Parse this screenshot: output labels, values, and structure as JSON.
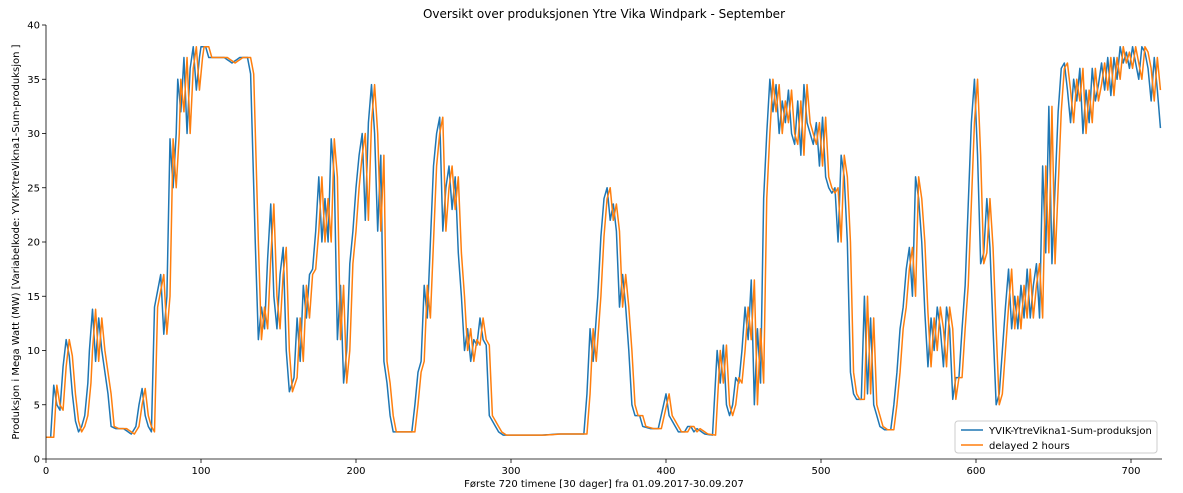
{
  "chart_data": {
    "type": "line",
    "title": "Oversikt over produksjonen Ytre Vika Windpark - September",
    "xlabel": "Første 720 timene [30 dager] fra 01.09.2017-30.09.207",
    "ylabel": "Produksjon i Mega Watt (MW) [Variabelkode: YVIK-YtreVikna1-Sum-produksjon ]",
    "xlim": [
      0,
      720
    ],
    "ylim": [
      0,
      40
    ],
    "xticks": [
      0,
      100,
      200,
      300,
      400,
      500,
      600,
      700
    ],
    "yticks": [
      0,
      5,
      10,
      15,
      20,
      25,
      30,
      35,
      40
    ],
    "grid": false,
    "legend_position": "lower-right",
    "delay_hours": 2,
    "series": [
      {
        "name": "YVIK-YtreVikna1-Sum-produksjon",
        "color": "#1f77b4",
        "keypoints": [
          [
            0,
            2
          ],
          [
            3,
            2
          ],
          [
            5,
            6.8
          ],
          [
            7,
            5
          ],
          [
            9,
            4.5
          ],
          [
            11,
            8.5
          ],
          [
            13,
            11
          ],
          [
            15,
            9.5
          ],
          [
            17,
            6
          ],
          [
            19,
            3.5
          ],
          [
            21,
            2.5
          ],
          [
            23,
            3
          ],
          [
            25,
            4
          ],
          [
            27,
            7
          ],
          [
            28,
            10
          ],
          [
            30,
            13.8
          ],
          [
            32,
            9
          ],
          [
            34,
            13
          ],
          [
            36,
            10
          ],
          [
            38,
            8
          ],
          [
            40,
            6
          ],
          [
            42,
            3
          ],
          [
            45,
            2.8
          ],
          [
            50,
            2.8
          ],
          [
            53,
            2.5
          ],
          [
            55,
            2.3
          ],
          [
            58,
            3
          ],
          [
            60,
            5
          ],
          [
            62,
            6.5
          ],
          [
            64,
            4
          ],
          [
            66,
            3
          ],
          [
            68,
            2.5
          ],
          [
            70,
            14
          ],
          [
            72,
            15.5
          ],
          [
            74,
            17
          ],
          [
            76,
            11.5
          ],
          [
            78,
            15
          ],
          [
            80,
            29.5
          ],
          [
            82,
            25
          ],
          [
            84,
            30
          ],
          [
            85,
            35
          ],
          [
            87,
            32
          ],
          [
            89,
            37
          ],
          [
            91,
            30
          ],
          [
            93,
            36
          ],
          [
            95,
            38
          ],
          [
            97,
            34
          ],
          [
            99,
            37
          ],
          [
            100,
            38
          ],
          [
            103,
            38
          ],
          [
            105,
            37
          ],
          [
            110,
            37
          ],
          [
            115,
            37
          ],
          [
            120,
            36.5
          ],
          [
            125,
            37
          ],
          [
            130,
            37
          ],
          [
            132,
            35.5
          ],
          [
            135,
            20
          ],
          [
            137,
            11
          ],
          [
            139,
            14
          ],
          [
            141,
            12
          ],
          [
            143,
            18.5
          ],
          [
            145,
            23.5
          ],
          [
            147,
            15
          ],
          [
            149,
            12
          ],
          [
            151,
            17
          ],
          [
            153,
            19.5
          ],
          [
            155,
            10
          ],
          [
            157,
            6.2
          ],
          [
            160,
            7.5
          ],
          [
            162,
            13
          ],
          [
            164,
            9
          ],
          [
            166,
            16
          ],
          [
            168,
            13
          ],
          [
            170,
            17
          ],
          [
            172,
            17.5
          ],
          [
            174,
            21
          ],
          [
            176,
            26
          ],
          [
            178,
            20
          ],
          [
            180,
            24
          ],
          [
            182,
            20
          ],
          [
            184,
            29.5
          ],
          [
            186,
            26
          ],
          [
            188,
            11
          ],
          [
            190,
            16
          ],
          [
            192,
            7
          ],
          [
            194,
            10
          ],
          [
            196,
            18
          ],
          [
            198,
            21
          ],
          [
            200,
            25
          ],
          [
            202,
            28
          ],
          [
            204,
            30
          ],
          [
            206,
            22
          ],
          [
            208,
            31
          ],
          [
            210,
            34.5
          ],
          [
            212,
            30
          ],
          [
            214,
            21
          ],
          [
            216,
            28
          ],
          [
            218,
            9
          ],
          [
            220,
            7
          ],
          [
            222,
            4
          ],
          [
            224,
            2.5
          ],
          [
            228,
            2.5
          ],
          [
            232,
            2.5
          ],
          [
            236,
            2.5
          ],
          [
            238,
            5
          ],
          [
            240,
            8
          ],
          [
            242,
            9
          ],
          [
            244,
            16
          ],
          [
            246,
            13
          ],
          [
            248,
            20
          ],
          [
            250,
            27
          ],
          [
            252,
            30
          ],
          [
            254,
            31.5
          ],
          [
            256,
            21
          ],
          [
            258,
            25
          ],
          [
            260,
            27
          ],
          [
            262,
            23
          ],
          [
            264,
            26
          ],
          [
            266,
            19
          ],
          [
            268,
            15
          ],
          [
            270,
            10
          ],
          [
            272,
            12
          ],
          [
            274,
            9
          ],
          [
            276,
            11
          ],
          [
            278,
            10.5
          ],
          [
            280,
            13
          ],
          [
            282,
            11
          ],
          [
            284,
            10.5
          ],
          [
            286,
            4
          ],
          [
            288,
            3.5
          ],
          [
            290,
            3
          ],
          [
            292,
            2.5
          ],
          [
            295,
            2.2
          ],
          [
            300,
            2.2
          ],
          [
            310,
            2.2
          ],
          [
            320,
            2.2
          ],
          [
            330,
            2.3
          ],
          [
            340,
            2.3
          ],
          [
            345,
            2.3
          ],
          [
            347,
            2.3
          ],
          [
            349,
            6
          ],
          [
            351,
            12
          ],
          [
            353,
            9
          ],
          [
            356,
            15
          ],
          [
            358,
            20.5
          ],
          [
            360,
            24
          ],
          [
            362,
            25
          ],
          [
            364,
            22
          ],
          [
            366,
            23.5
          ],
          [
            368,
            21
          ],
          [
            370,
            14
          ],
          [
            372,
            17
          ],
          [
            374,
            14
          ],
          [
            376,
            10
          ],
          [
            378,
            5
          ],
          [
            380,
            4
          ],
          [
            383,
            4
          ],
          [
            385,
            3
          ],
          [
            390,
            2.8
          ],
          [
            395,
            2.8
          ],
          [
            400,
            6
          ],
          [
            402,
            4
          ],
          [
            404,
            3.5
          ],
          [
            406,
            3
          ],
          [
            408,
            2.5
          ],
          [
            412,
            2.5
          ],
          [
            414,
            3
          ],
          [
            416,
            3
          ],
          [
            418,
            2.5
          ],
          [
            420,
            2.8
          ],
          [
            425,
            2.3
          ],
          [
            430,
            2.2
          ],
          [
            433,
            10
          ],
          [
            435,
            7
          ],
          [
            437,
            10.5
          ],
          [
            439,
            5
          ],
          [
            441,
            4
          ],
          [
            443,
            5
          ],
          [
            445,
            7.5
          ],
          [
            447,
            7
          ],
          [
            449,
            10
          ],
          [
            451,
            14
          ],
          [
            453,
            11
          ],
          [
            455,
            16.5
          ],
          [
            457,
            5
          ],
          [
            459,
            12
          ],
          [
            461,
            7
          ],
          [
            463,
            24
          ],
          [
            465,
            30
          ],
          [
            467,
            35
          ],
          [
            469,
            32
          ],
          [
            471,
            34.5
          ],
          [
            473,
            30
          ],
          [
            475,
            33
          ],
          [
            477,
            31
          ],
          [
            479,
            34
          ],
          [
            481,
            30
          ],
          [
            483,
            29
          ],
          [
            485,
            33
          ],
          [
            487,
            28
          ],
          [
            489,
            34.5
          ],
          [
            491,
            31
          ],
          [
            493,
            30
          ],
          [
            495,
            29
          ],
          [
            497,
            31
          ],
          [
            499,
            27
          ],
          [
            501,
            31.5
          ],
          [
            503,
            26
          ],
          [
            505,
            25
          ],
          [
            507,
            24.5
          ],
          [
            509,
            25
          ],
          [
            511,
            20
          ],
          [
            513,
            28
          ],
          [
            515,
            26
          ],
          [
            517,
            20
          ],
          [
            519,
            8
          ],
          [
            521,
            6
          ],
          [
            523,
            5.5
          ],
          [
            526,
            5.5
          ],
          [
            528,
            15
          ],
          [
            530,
            6
          ],
          [
            532,
            13
          ],
          [
            534,
            5
          ],
          [
            536,
            4
          ],
          [
            538,
            3
          ],
          [
            541,
            2.7
          ],
          [
            545,
            2.7
          ],
          [
            547,
            5
          ],
          [
            549,
            8
          ],
          [
            551,
            12
          ],
          [
            553,
            14
          ],
          [
            555,
            17.5
          ],
          [
            557,
            19.5
          ],
          [
            559,
            15
          ],
          [
            561,
            26
          ],
          [
            563,
            24
          ],
          [
            565,
            20
          ],
          [
            567,
            13.5
          ],
          [
            569,
            8.5
          ],
          [
            571,
            13
          ],
          [
            573,
            10
          ],
          [
            575,
            14
          ],
          [
            577,
            12
          ],
          [
            579,
            8.5
          ],
          [
            581,
            14
          ],
          [
            583,
            12
          ],
          [
            585,
            5.5
          ],
          [
            587,
            7.5
          ],
          [
            589,
            7.5
          ],
          [
            591,
            12
          ],
          [
            593,
            16
          ],
          [
            595,
            23.5
          ],
          [
            597,
            31
          ],
          [
            599,
            35
          ],
          [
            601,
            28
          ],
          [
            603,
            18
          ],
          [
            605,
            19
          ],
          [
            607,
            24
          ],
          [
            609,
            19.5
          ],
          [
            611,
            12
          ],
          [
            613,
            5
          ],
          [
            615,
            6
          ],
          [
            617,
            10
          ],
          [
            619,
            14
          ],
          [
            621,
            17.5
          ],
          [
            623,
            12
          ],
          [
            625,
            15
          ],
          [
            627,
            12
          ],
          [
            629,
            16
          ],
          [
            631,
            13
          ],
          [
            633,
            17.5
          ],
          [
            635,
            13
          ],
          [
            637,
            16
          ],
          [
            639,
            18
          ],
          [
            641,
            13
          ],
          [
            643,
            27
          ],
          [
            645,
            19
          ],
          [
            647,
            32.5
          ],
          [
            649,
            18
          ],
          [
            651,
            25
          ],
          [
            653,
            32
          ],
          [
            655,
            36
          ],
          [
            657,
            36.5
          ],
          [
            659,
            34
          ],
          [
            661,
            31
          ],
          [
            663,
            35
          ],
          [
            665,
            33
          ],
          [
            667,
            36
          ],
          [
            669,
            30
          ],
          [
            671,
            34
          ],
          [
            673,
            31
          ],
          [
            675,
            36
          ],
          [
            677,
            33
          ],
          [
            679,
            34.5
          ],
          [
            681,
            36.5
          ],
          [
            683,
            34
          ],
          [
            685,
            37
          ],
          [
            687,
            33.5
          ],
          [
            689,
            37
          ],
          [
            691,
            35
          ],
          [
            693,
            38
          ],
          [
            695,
            36.5
          ],
          [
            697,
            37.5
          ],
          [
            699,
            36
          ],
          [
            701,
            38
          ],
          [
            703,
            36.5
          ],
          [
            705,
            35
          ],
          [
            707,
            38
          ],
          [
            709,
            37.5
          ],
          [
            711,
            36
          ],
          [
            713,
            33
          ],
          [
            715,
            37
          ],
          [
            717,
            34
          ],
          [
            719,
            30.5
          ]
        ]
      },
      {
        "name": "delayed 2 hours",
        "color": "#ff7f0e"
      }
    ]
  }
}
